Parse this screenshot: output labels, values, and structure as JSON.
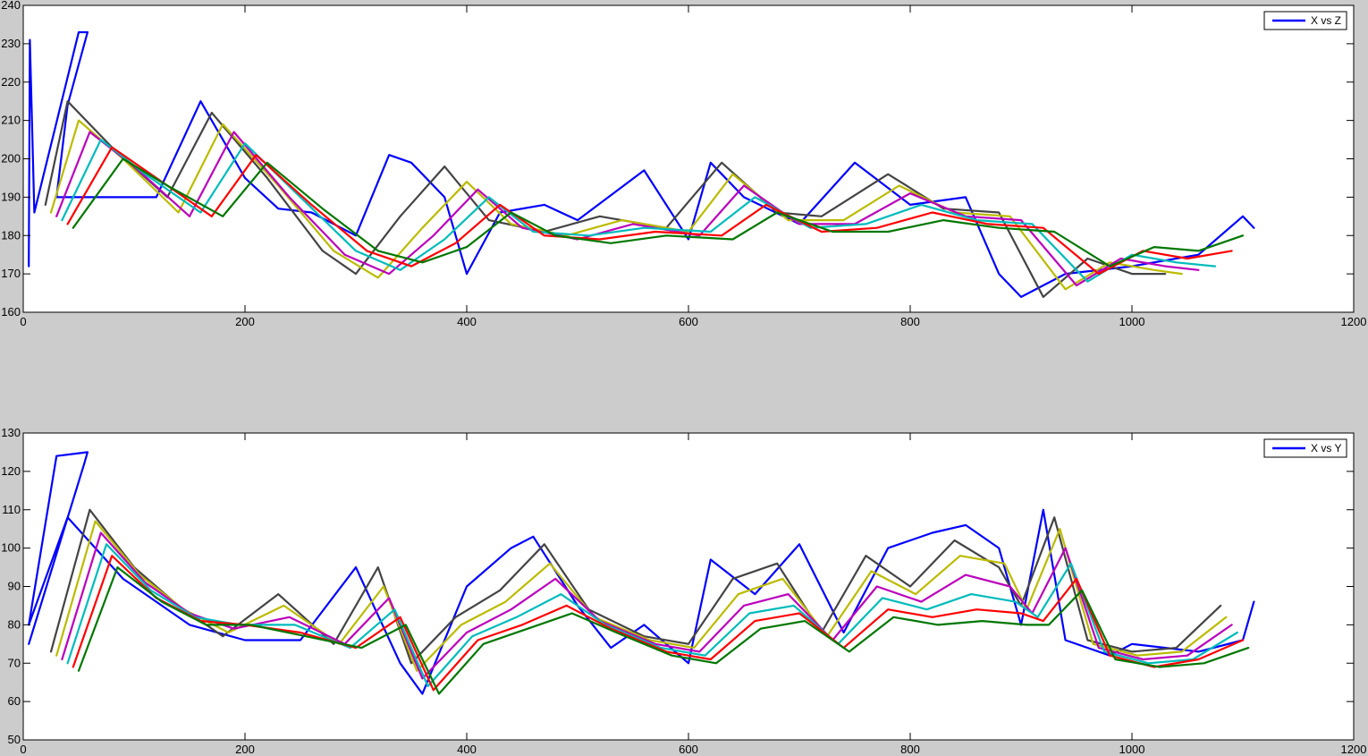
{
  "figure": {
    "background": "#cccccc"
  },
  "chart_data": [
    {
      "type": "line",
      "title": "",
      "xlabel": "",
      "ylabel": "",
      "xlim": [
        0,
        1200
      ],
      "ylim": [
        160,
        240
      ],
      "xticks": [
        0,
        200,
        400,
        600,
        800,
        1000,
        1200
      ],
      "yticks": [
        160,
        170,
        180,
        190,
        200,
        210,
        220,
        230,
        240
      ],
      "grid": false,
      "legend": {
        "placement": "top-right",
        "entries": [
          {
            "label": "X vs Z",
            "color": "#0000ff"
          }
        ]
      },
      "palette": [
        "#0000ff",
        "#444444",
        "#bbbb00",
        "#bb00bb",
        "#00bbbb",
        "#ff0000",
        "#007700"
      ],
      "series": [
        {
          "color": "#0000ff",
          "x": [
            5,
            6,
            10,
            50,
            58,
            40,
            30,
            120,
            160,
            200,
            230,
            260,
            300,
            330,
            350,
            380,
            400,
            430,
            470,
            500,
            560,
            600,
            620,
            650,
            700,
            750,
            800,
            850,
            880,
            900,
            940,
            1000,
            1060,
            1100,
            1110
          ],
          "y": [
            172,
            231,
            186,
            233,
            233,
            214,
            190,
            190,
            215,
            195,
            187,
            186,
            180,
            201,
            199,
            190,
            170,
            186,
            188,
            184,
            197,
            179,
            199,
            190,
            183,
            199,
            188,
            190,
            170,
            164,
            170,
            172,
            175,
            185,
            182
          ]
        },
        {
          "color": "#444444",
          "x": [
            20,
            40,
            80,
            130,
            170,
            220,
            270,
            300,
            340,
            380,
            420,
            470,
            520,
            580,
            630,
            680,
            720,
            780,
            830,
            880,
            920,
            960,
            1000,
            1030
          ],
          "y": [
            188,
            215,
            203,
            190,
            212,
            195,
            176,
            170,
            185,
            198,
            184,
            181,
            185,
            182,
            199,
            186,
            185,
            196,
            187,
            186,
            164,
            174,
            170,
            170
          ]
        },
        {
          "color": "#bbbb00",
          "x": [
            25,
            50,
            90,
            140,
            180,
            230,
            280,
            320,
            360,
            400,
            440,
            490,
            540,
            600,
            640,
            690,
            740,
            790,
            840,
            890,
            940,
            980,
            1020,
            1045
          ],
          "y": [
            186,
            210,
            200,
            186,
            209,
            193,
            176,
            169,
            182,
            194,
            183,
            180,
            184,
            181,
            196,
            184,
            184,
            193,
            186,
            185,
            166,
            173,
            171,
            170
          ]
        },
        {
          "color": "#bb00bb",
          "x": [
            30,
            60,
            100,
            150,
            190,
            240,
            290,
            330,
            370,
            410,
            450,
            500,
            550,
            610,
            650,
            700,
            750,
            800,
            850,
            900,
            950,
            990,
            1030,
            1060
          ],
          "y": [
            185,
            207,
            198,
            185,
            207,
            190,
            175,
            170,
            180,
            192,
            182,
            179,
            183,
            180,
            193,
            183,
            183,
            191,
            185,
            184,
            167,
            174,
            172,
            171
          ]
        },
        {
          "color": "#00bbbb",
          "x": [
            35,
            70,
            110,
            160,
            200,
            250,
            300,
            340,
            380,
            420,
            460,
            510,
            560,
            620,
            660,
            710,
            760,
            810,
            860,
            910,
            960,
            1000,
            1040,
            1075
          ],
          "y": [
            184,
            205,
            196,
            186,
            204,
            190,
            176,
            171,
            179,
            190,
            181,
            180,
            182,
            181,
            190,
            182,
            183,
            188,
            184,
            183,
            168,
            175,
            173,
            172
          ]
        },
        {
          "color": "#ff0000",
          "x": [
            40,
            80,
            120,
            170,
            210,
            260,
            310,
            350,
            390,
            430,
            470,
            520,
            570,
            630,
            670,
            720,
            770,
            820,
            870,
            920,
            970,
            1010,
            1050,
            1090
          ],
          "y": [
            183,
            203,
            195,
            185,
            201,
            188,
            176,
            172,
            178,
            188,
            180,
            179,
            181,
            180,
            188,
            181,
            182,
            186,
            183,
            182,
            170,
            176,
            174,
            176
          ]
        },
        {
          "color": "#007700",
          "x": [
            45,
            90,
            130,
            180,
            220,
            270,
            320,
            360,
            400,
            440,
            480,
            530,
            580,
            640,
            680,
            730,
            780,
            830,
            880,
            930,
            980,
            1020,
            1060,
            1100
          ],
          "y": [
            182,
            200,
            193,
            185,
            199,
            187,
            176,
            173,
            177,
            186,
            180,
            178,
            180,
            179,
            186,
            181,
            181,
            184,
            182,
            181,
            172,
            177,
            176,
            180
          ]
        }
      ]
    },
    {
      "type": "line",
      "title": "",
      "xlabel": "",
      "ylabel": "",
      "xlim": [
        0,
        1200
      ],
      "ylim": [
        50,
        130
      ],
      "xticks": [
        0,
        200,
        400,
        600,
        800,
        1000,
        1200
      ],
      "yticks": [
        50,
        60,
        70,
        80,
        90,
        100,
        110,
        120,
        130
      ],
      "grid": false,
      "legend": {
        "placement": "top-right",
        "entries": [
          {
            "label": "X vs Y",
            "color": "#0000ff"
          }
        ]
      },
      "palette": [
        "#0000ff",
        "#444444",
        "#bbbb00",
        "#bb00bb",
        "#00bbbb",
        "#ff0000",
        "#007700"
      ],
      "series": [
        {
          "color": "#0000ff",
          "x": [
            5,
            55,
            58,
            30,
            5,
            40,
            90,
            150,
            200,
            250,
            300,
            340,
            360,
            400,
            440,
            460,
            500,
            530,
            560,
            600,
            620,
            660,
            700,
            740,
            780,
            820,
            850,
            880,
            900,
            920,
            940,
            980,
            1000,
            1060,
            1100,
            1110
          ],
          "y": [
            75,
            122,
            125,
            124,
            80,
            108,
            92,
            80,
            76,
            76,
            95,
            70,
            62,
            90,
            100,
            103,
            85,
            74,
            80,
            70,
            97,
            88,
            101,
            78,
            100,
            104,
            106,
            100,
            80,
            110,
            76,
            72,
            75,
            73,
            76,
            86
          ]
        },
        {
          "color": "#444444",
          "x": [
            25,
            60,
            100,
            140,
            180,
            230,
            280,
            320,
            350,
            390,
            430,
            470,
            510,
            560,
            600,
            640,
            680,
            720,
            760,
            800,
            840,
            880,
            900,
            930,
            960,
            1000,
            1040,
            1080
          ],
          "y": [
            73,
            110,
            95,
            85,
            77,
            88,
            75,
            95,
            70,
            82,
            89,
            101,
            84,
            77,
            75,
            92,
            96,
            78,
            98,
            90,
            102,
            95,
            85,
            108,
            76,
            73,
            74,
            85
          ]
        },
        {
          "color": "#bbbb00",
          "x": [
            30,
            65,
            105,
            145,
            185,
            235,
            285,
            325,
            355,
            395,
            435,
            475,
            515,
            565,
            605,
            645,
            685,
            725,
            765,
            805,
            845,
            885,
            905,
            935,
            965,
            1005,
            1045,
            1085
          ],
          "y": [
            72,
            107,
            93,
            84,
            78,
            85,
            75,
            90,
            68,
            80,
            86,
            96,
            82,
            76,
            74,
            88,
            92,
            77,
            94,
            88,
            98,
            96,
            84,
            105,
            75,
            72,
            73,
            82
          ]
        },
        {
          "color": "#bb00bb",
          "x": [
            35,
            70,
            110,
            150,
            190,
            240,
            290,
            330,
            360,
            400,
            440,
            480,
            520,
            570,
            610,
            650,
            690,
            730,
            770,
            810,
            850,
            890,
            910,
            940,
            970,
            1010,
            1050,
            1090
          ],
          "y": [
            71,
            104,
            91,
            83,
            79,
            82,
            75,
            87,
            66,
            78,
            84,
            92,
            81,
            75,
            73,
            85,
            88,
            76,
            90,
            86,
            93,
            90,
            83,
            100,
            74,
            71,
            72,
            80
          ]
        },
        {
          "color": "#00bbbb",
          "x": [
            40,
            75,
            115,
            155,
            195,
            245,
            295,
            335,
            365,
            405,
            445,
            485,
            525,
            575,
            615,
            655,
            695,
            735,
            775,
            815,
            855,
            895,
            915,
            945,
            975,
            1015,
            1055,
            1095
          ],
          "y": [
            70,
            101,
            89,
            82,
            80,
            80,
            74,
            84,
            64,
            77,
            82,
            88,
            80,
            74,
            72,
            83,
            85,
            75,
            87,
            84,
            88,
            86,
            82,
            96,
            73,
            70,
            71,
            78
          ]
        },
        {
          "color": "#ff0000",
          "x": [
            45,
            80,
            120,
            160,
            200,
            250,
            300,
            340,
            370,
            410,
            450,
            490,
            530,
            580,
            620,
            660,
            700,
            740,
            780,
            820,
            860,
            900,
            920,
            950,
            980,
            1020,
            1060,
            1100
          ],
          "y": [
            69,
            98,
            87,
            81,
            80,
            78,
            74,
            82,
            63,
            76,
            80,
            85,
            79,
            73,
            71,
            81,
            83,
            74,
            84,
            82,
            84,
            83,
            81,
            92,
            72,
            69,
            71,
            76
          ]
        },
        {
          "color": "#007700",
          "x": [
            50,
            85,
            125,
            165,
            205,
            255,
            305,
            345,
            375,
            415,
            455,
            495,
            535,
            585,
            625,
            665,
            705,
            745,
            785,
            825,
            865,
            905,
            925,
            955,
            985,
            1025,
            1065,
            1105
          ],
          "y": [
            68,
            95,
            86,
            80,
            80,
            77,
            74,
            80,
            62,
            75,
            79,
            83,
            78,
            72,
            70,
            79,
            81,
            73,
            82,
            80,
            81,
            80,
            80,
            89,
            71,
            69,
            70,
            74
          ]
        }
      ]
    }
  ]
}
